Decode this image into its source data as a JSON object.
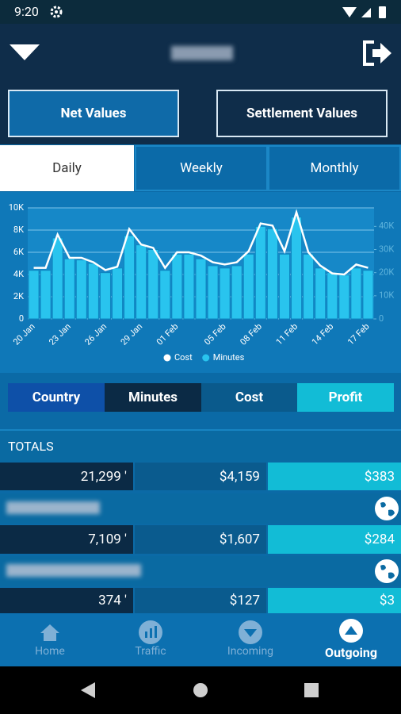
{
  "status_bar": {
    "time": "9:20"
  },
  "buttons": [
    "Net Values",
    "Settlement Values"
  ],
  "tabs": [
    "Daily",
    "Weekly",
    "Monthly"
  ],
  "chart_data": {
    "type": "combo",
    "categories": [
      "20 Jan",
      null,
      null,
      "23 Jan",
      null,
      null,
      "26 Jan",
      null,
      null,
      "29 Jan",
      null,
      null,
      "01 Feb",
      null,
      null,
      null,
      "05 Feb",
      null,
      null,
      "08 Feb",
      null,
      null,
      "11 Feb",
      null,
      null,
      "14 Feb",
      null,
      null,
      "17 Feb"
    ],
    "series": [
      {
        "name": "Cost",
        "mark": "line",
        "color": "#ffffff",
        "values": [
          4600,
          4600,
          7600,
          5500,
          5500,
          5100,
          4400,
          4700,
          8100,
          6700,
          6400,
          4600,
          6000,
          6000,
          5700,
          5100,
          4900,
          5100,
          6100,
          8600,
          8400,
          6100,
          9600,
          6000,
          4800,
          4100,
          4000,
          4900,
          4600
        ]
      },
      {
        "name": "Minutes",
        "mark": "bar",
        "axis": "y2",
        "color": "#29c4ee",
        "values": [
          21000,
          21000,
          35000,
          26000,
          25500,
          24000,
          20000,
          22000,
          36000,
          32000,
          30000,
          21000,
          28000,
          28000,
          26000,
          23000,
          22000,
          23000,
          28000,
          40000,
          39000,
          28000,
          44000,
          28000,
          22000,
          20000,
          19000,
          22000,
          21000
        ]
      }
    ],
    "ylim": [
      0,
      10000
    ],
    "yticks": [
      0,
      {
        "value": 2000,
        "label": "2K"
      },
      {
        "value": 4000,
        "label": "4K"
      },
      {
        "value": 6000,
        "label": "6K"
      },
      {
        "value": 8000,
        "label": "8K"
      },
      {
        "value": 10000,
        "label": "10K"
      }
    ],
    "y2lim": [
      0,
      48000
    ],
    "y2ticks": [
      0,
      {
        "value": 10000,
        "label": "10K"
      },
      {
        "value": 20000,
        "label": "20K"
      },
      {
        "value": 30000,
        "label": "30K"
      },
      {
        "value": 40000,
        "label": "40K"
      }
    ],
    "grid": true,
    "legend": "bottom"
  },
  "columns": [
    "Country",
    "Minutes",
    "Cost",
    "Profit"
  ],
  "totals": {
    "label": "TOTALS",
    "minutes": "21,299 '",
    "cost": "$4,159",
    "profit": "$383"
  },
  "rows": [
    {
      "minutes": "7,109 '",
      "cost": "$1,607",
      "profit": "$284"
    },
    {
      "minutes": "374 '",
      "cost": "$127",
      "profit": "$3"
    }
  ],
  "nav": [
    "Home",
    "Traffic",
    "Incoming",
    "Outgoing"
  ]
}
